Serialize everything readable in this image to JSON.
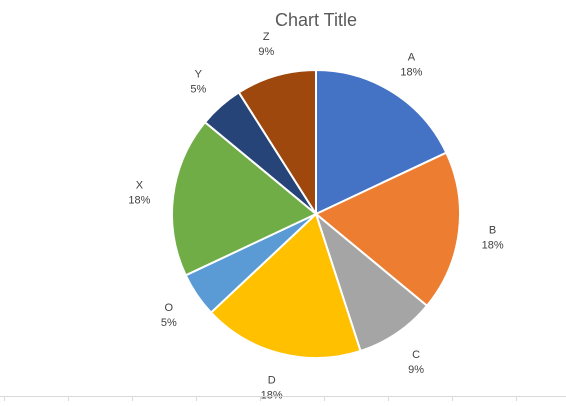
{
  "chart_data": {
    "type": "pie",
    "title": "Chart Title",
    "slices": [
      {
        "label": "A",
        "value": 18,
        "percent_label": "18%",
        "color": "#4472C4"
      },
      {
        "label": "B",
        "value": 18,
        "percent_label": "18%",
        "color": "#ED7D31"
      },
      {
        "label": "C",
        "value": 9,
        "percent_label": "9%",
        "color": "#A5A5A5"
      },
      {
        "label": "D",
        "value": 18,
        "percent_label": "18%",
        "color": "#FFC000"
      },
      {
        "label": "O",
        "value": 5,
        "percent_label": "5%",
        "color": "#5B9BD5"
      },
      {
        "label": "X",
        "value": 18,
        "percent_label": "18%",
        "color": "#70AD47"
      },
      {
        "label": "Y",
        "value": 5,
        "percent_label": "5%",
        "color": "#264478"
      },
      {
        "label": "Z",
        "value": 9,
        "percent_label": "9%",
        "color": "#9E480E"
      }
    ],
    "start_angle": "top",
    "direction": "clockwise",
    "data_labels": "outside-end",
    "legend": "none"
  }
}
